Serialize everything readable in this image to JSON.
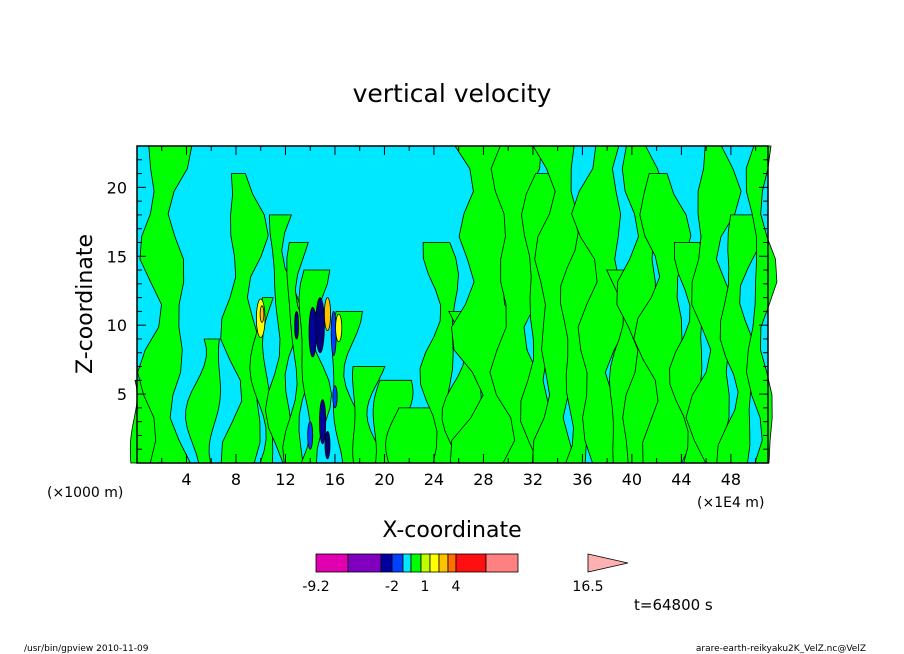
{
  "chart_data": {
    "type": "heatmap",
    "title": "vertical velocity",
    "xlabel": "X-coordinate",
    "ylabel": "Z-coordinate",
    "x_unit_left": "(×1000 m)",
    "x_unit_right": "(×1E4 m)",
    "xlim": [
      0,
      51
    ],
    "ylim": [
      0,
      23
    ],
    "x_ticks": [
      4,
      8,
      12,
      16,
      20,
      24,
      28,
      32,
      36,
      40,
      44,
      48
    ],
    "y_ticks": [
      5,
      10,
      15,
      20
    ],
    "background_color": "#00e8ff",
    "positive_color": "#00ff00",
    "colorbar": {
      "colors": [
        "#e000b0",
        "#8000c0",
        "#0000a0",
        "#0040ff",
        "#00e8ff",
        "#00ff00",
        "#c0ff00",
        "#ffff00",
        "#ffc000",
        "#ff7000",
        "#ff1010",
        "#ff8080",
        "#ffb0b0"
      ],
      "labels": [
        "-9.2",
        "-2",
        "1",
        "4",
        "16.5"
      ]
    },
    "time_label": "t=64800 s",
    "footer_left": "/usr/bin/gpview   2010-11-09",
    "footer_right": "arare-earth-reikyaku2K_VelZ.nc@VelZ"
  }
}
